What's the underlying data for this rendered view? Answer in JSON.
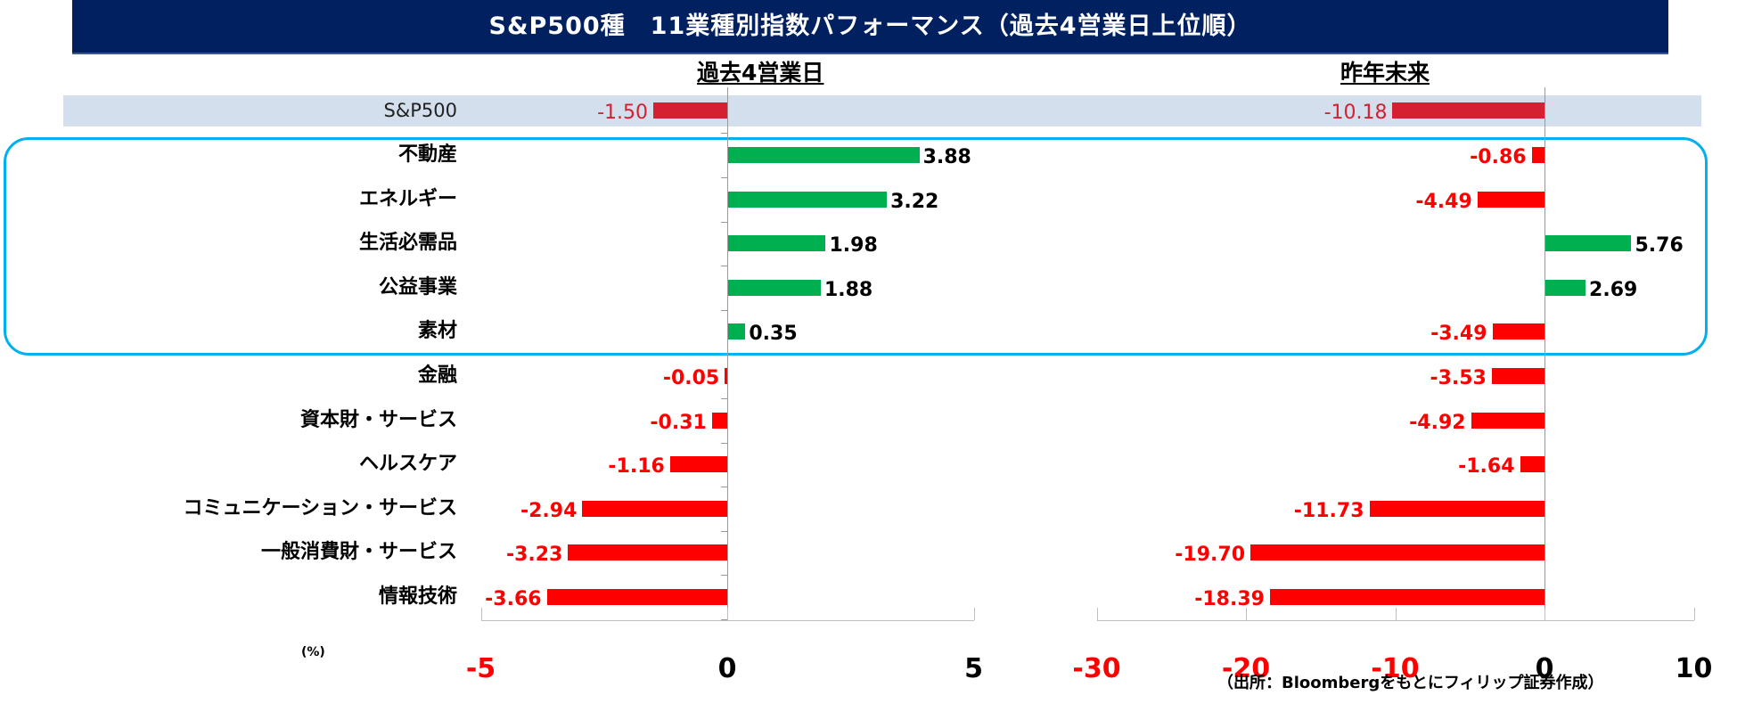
{
  "title": "S&P500種　11業種別指数パフォーマンス（過去4営業日上位順）",
  "headers": {
    "left": "過去4営業日",
    "right": "昨年末来"
  },
  "unit_label": "(%)",
  "source": "（出所：Bloombergをもとにフィリップ証券作成）",
  "colors": {
    "title_bg": "#002060",
    "positive": "#00b050",
    "negative": "#ff0000",
    "index_bar": "#d42030",
    "index_band": "#d4dfed",
    "highlight_border": "#00b0f0"
  },
  "rows": [
    {
      "label": "S&P500",
      "is_index": true,
      "past4": "-1.50",
      "ytd": "-10.18"
    },
    {
      "label": "不動産",
      "past4": "3.88",
      "ytd": "-0.86"
    },
    {
      "label": "エネルギー",
      "past4": "3.22",
      "ytd": "-4.49"
    },
    {
      "label": "生活必需品",
      "past4": "1.98",
      "ytd": "5.76"
    },
    {
      "label": "公益事業",
      "past4": "1.88",
      "ytd": "2.69"
    },
    {
      "label": "素材",
      "past4": "0.35",
      "ytd": "-3.49"
    },
    {
      "label": "金融",
      "past4": "-0.05",
      "ytd": "-3.53"
    },
    {
      "label": "資本財・サービス",
      "past4": "-0.31",
      "ytd": "-4.92"
    },
    {
      "label": "ヘルスケア",
      "past4": "-1.16",
      "ytd": "-1.64"
    },
    {
      "label": "コミュニケーション・サービス",
      "past4": "-2.94",
      "ytd": "-11.73"
    },
    {
      "label": "一般消費財・サービス",
      "past4": "-3.23",
      "ytd": "-19.70"
    },
    {
      "label": "情報技術",
      "past4": "-3.66",
      "ytd": "-18.39"
    }
  ],
  "axes": {
    "left": {
      "ticks": [
        "-5",
        "0",
        "5"
      ]
    },
    "right": {
      "ticks": [
        "-30",
        "-20",
        "-10",
        "0",
        "10"
      ]
    }
  },
  "chart_data": [
    {
      "type": "bar",
      "orientation": "horizontal",
      "title": "過去4営業日",
      "categories": [
        "S&P500",
        "不動産",
        "エネルギー",
        "生活必需品",
        "公益事業",
        "素材",
        "金融",
        "資本財・サービス",
        "ヘルスケア",
        "コミュニケーション・サービス",
        "一般消費財・サービス",
        "情報技術"
      ],
      "values": [
        -1.5,
        3.88,
        3.22,
        1.98,
        1.88,
        0.35,
        -0.05,
        -0.31,
        -1.16,
        -2.94,
        -3.23,
        -3.66
      ],
      "xlabel": "(%)",
      "ylabel": "",
      "xlim": [
        -5,
        5
      ],
      "xticks": [
        -5,
        0,
        5
      ],
      "grid": false,
      "legend": null
    },
    {
      "type": "bar",
      "orientation": "horizontal",
      "title": "昨年末来",
      "categories": [
        "S&P500",
        "不動産",
        "エネルギー",
        "生活必需品",
        "公益事業",
        "素材",
        "金融",
        "資本財・サービス",
        "ヘルスケア",
        "コミュニケーション・サービス",
        "一般消費財・サービス",
        "情報技術"
      ],
      "values": [
        -10.18,
        -0.86,
        -4.49,
        5.76,
        2.69,
        -3.49,
        -3.53,
        -4.92,
        -1.64,
        -11.73,
        -19.7,
        -18.39
      ],
      "xlabel": "(%)",
      "ylabel": "",
      "xlim": [
        -30,
        10
      ],
      "xticks": [
        -30,
        -20,
        -10,
        0,
        10
      ],
      "grid": false,
      "legend": null
    }
  ]
}
